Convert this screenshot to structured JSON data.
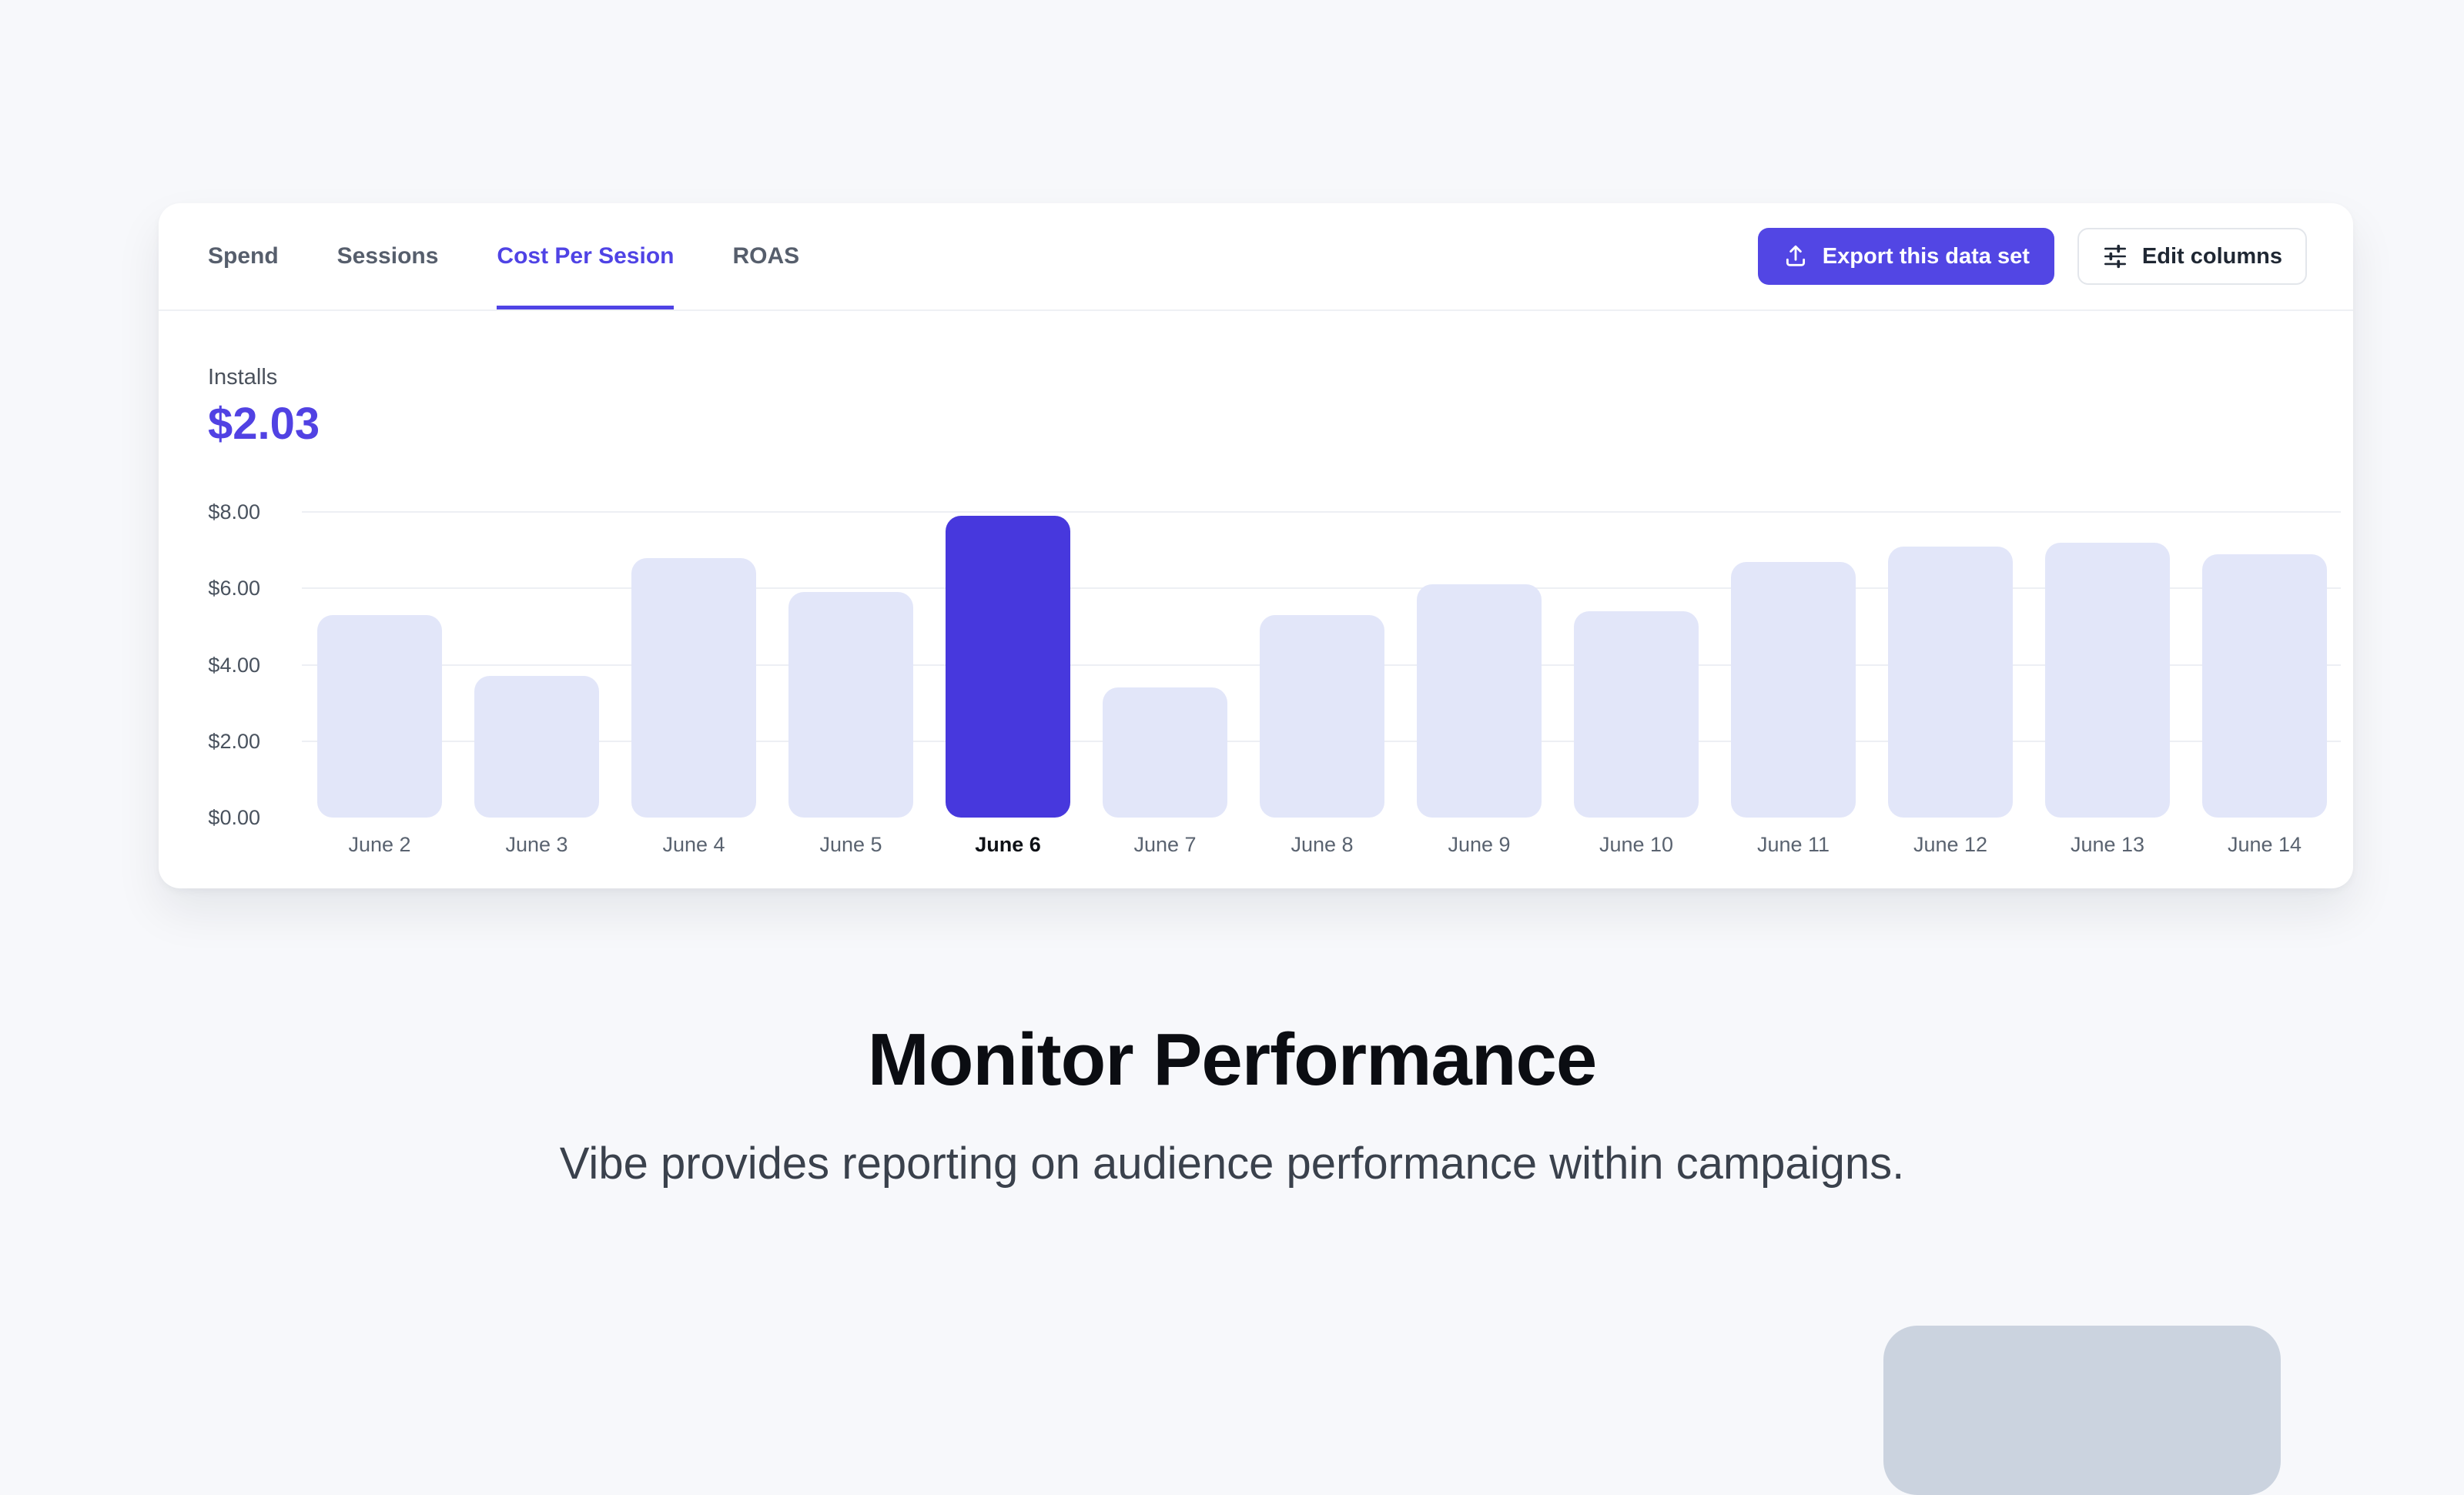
{
  "card": {
    "tabs": [
      {
        "label": "Spend",
        "active": false
      },
      {
        "label": "Sessions",
        "active": false
      },
      {
        "label": "Cost Per Sesion",
        "active": true
      },
      {
        "label": "ROAS",
        "active": false
      }
    ],
    "actions": {
      "export_label": "Export this data set",
      "edit_columns_label": "Edit columns"
    },
    "metric": {
      "label": "Installs",
      "value": "$2.03"
    }
  },
  "chart_data": {
    "type": "bar",
    "categories": [
      "June 2",
      "June 3",
      "June 4",
      "June 5",
      "June 6",
      "June 7",
      "June 8",
      "June 9",
      "June 10",
      "June 11",
      "June 12",
      "June 13",
      "June 14"
    ],
    "values": [
      5.3,
      3.7,
      6.8,
      5.9,
      7.9,
      3.4,
      5.3,
      6.1,
      5.4,
      6.7,
      7.1,
      7.2,
      6.9
    ],
    "highlighted_index": 4,
    "highlighted_category": "June 6",
    "y_ticks": [
      {
        "label": "$0.00",
        "value": 0
      },
      {
        "label": "$2.00",
        "value": 2
      },
      {
        "label": "$4.00",
        "value": 4
      },
      {
        "label": "$6.00",
        "value": 6
      },
      {
        "label": "$8.00",
        "value": 8
      }
    ],
    "ylim": [
      0,
      8
    ],
    "grid": true,
    "legend": false,
    "bar_color": "#E2E6F9",
    "highlight_color": "#4738DD"
  },
  "hero": {
    "title": "Monitor Performance",
    "subtitle": "Vibe provides reporting on audience performance within campaigns."
  },
  "colors": {
    "accent": "#5246E4",
    "accent_text": "#5142E3",
    "page_background": "#F7F8FB",
    "grid_line": "#EDEFF4",
    "decorative_box": "#CBD3DF"
  }
}
